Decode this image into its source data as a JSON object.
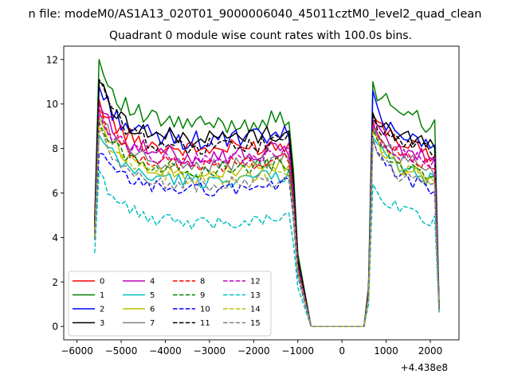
{
  "chart_data": {
    "type": "line",
    "suptitle": "n file: modeM0/AS1A13_020T01_9000006040_45011cztM0_level2_quad_clean",
    "title": "Quadrant 0 module wise count rates with 100.0s bins.",
    "xlabel": "",
    "ylabel": "",
    "x_offset_label": "+4.438e8",
    "xlim": [
      -6300,
      2650
    ],
    "ylim": [
      -0.6,
      12.6
    ],
    "xticks": [
      -6000,
      -5000,
      -4000,
      -3000,
      -2000,
      -1000,
      0,
      1000,
      2000
    ],
    "xtick_labels": [
      "−6000",
      "−5000",
      "−4000",
      "−3000",
      "−2000",
      "−1000",
      "0",
      "1000",
      "2000"
    ],
    "yticks": [
      0,
      2,
      4,
      6,
      8,
      10,
      12
    ],
    "ytick_labels": [
      "0",
      "2",
      "4",
      "6",
      "8",
      "10",
      "12"
    ],
    "grid": false,
    "legend": {
      "placement": "lower-left",
      "columns": 4
    },
    "colors": {
      "red": "#ff0000",
      "green": "#008000",
      "blue": "#0000ff",
      "black": "#000000",
      "magenta": "#bf00bf",
      "cyan": "#00bfbf",
      "olive": "#bfbf00",
      "gray": "#808080"
    },
    "segments": {
      "first": {
        "x_start": -5600,
        "x_step": 100,
        "count": 47
      },
      "gap": {
        "x": [
          -700,
          -600,
          -500,
          -400,
          -300,
          -200,
          -100,
          0,
          100,
          200,
          300,
          400,
          500
        ]
      },
      "second": {
        "x_start": 600,
        "x_step": 100,
        "count": 17
      }
    },
    "series": [
      {
        "name": "0",
        "color": "#ff0000",
        "dash": "solid",
        "level": 8.3,
        "peak": 10.2,
        "amp": 0.4,
        "edge": 4.3,
        "level2": 8.5,
        "peak2": 9.5,
        "end2": 0.8
      },
      {
        "name": "1",
        "color": "#008000",
        "dash": "solid",
        "level": 9.4,
        "peak": 12.0,
        "amp": 0.45,
        "edge": 4.8,
        "level2": 9.8,
        "peak2": 11.0,
        "end2": 0.9
      },
      {
        "name": "2",
        "color": "#0000ff",
        "dash": "solid",
        "level": 8.7,
        "peak": 10.8,
        "amp": 0.45,
        "edge": 4.5,
        "level2": 8.8,
        "peak2": 10.6,
        "end2": 0.8
      },
      {
        "name": "3",
        "color": "#000000",
        "dash": "solid",
        "level": 8.8,
        "peak": 11.0,
        "amp": 0.4,
        "edge": 4.6,
        "level2": 8.8,
        "peak2": 9.6,
        "end2": 0.8
      },
      {
        "name": "4",
        "color": "#bf00bf",
        "dash": "solid",
        "level": 8.0,
        "peak": 10.0,
        "amp": 0.4,
        "edge": 4.2,
        "level2": 8.2,
        "peak2": 9.3,
        "end2": 0.8
      },
      {
        "name": "5",
        "color": "#00bfbf",
        "dash": "solid",
        "level": 6.9,
        "peak": 8.6,
        "amp": 0.35,
        "edge": 4.0,
        "level2": 7.3,
        "peak2": 8.5,
        "end2": 0.7
      },
      {
        "name": "6",
        "color": "#bfbf00",
        "dash": "solid",
        "level": 7.3,
        "peak": 9.4,
        "amp": 0.35,
        "edge": 4.1,
        "level2": 7.4,
        "peak2": 8.8,
        "end2": 0.7
      },
      {
        "name": "7",
        "color": "#808080",
        "dash": "solid",
        "level": 7.6,
        "peak": 9.6,
        "amp": 0.35,
        "edge": 4.2,
        "level2": 7.8,
        "peak2": 9.0,
        "end2": 0.8
      },
      {
        "name": "8",
        "color": "#ff0000",
        "dash": "dashed",
        "level": 7.6,
        "peak": 9.8,
        "amp": 0.35,
        "edge": 4.2,
        "level2": 7.9,
        "peak2": 9.2,
        "end2": 0.8
      },
      {
        "name": "9",
        "color": "#008000",
        "dash": "dashed",
        "level": 7.4,
        "peak": 9.2,
        "amp": 0.35,
        "edge": 4.1,
        "level2": 7.6,
        "peak2": 8.9,
        "end2": 0.7
      },
      {
        "name": "10",
        "color": "#0000ff",
        "dash": "dashed",
        "level": 6.5,
        "peak": 7.8,
        "amp": 0.3,
        "edge": 3.9,
        "level2": 6.9,
        "peak2": 8.4,
        "end2": 0.7
      },
      {
        "name": "11",
        "color": "#000000",
        "dash": "dashed",
        "level": 8.4,
        "peak": 11.1,
        "amp": 0.4,
        "edge": 4.5,
        "level2": 8.5,
        "peak2": 9.6,
        "end2": 0.8
      },
      {
        "name": "12",
        "color": "#bf00bf",
        "dash": "dashed",
        "level": 7.8,
        "peak": 9.7,
        "amp": 0.35,
        "edge": 4.2,
        "level2": 8.0,
        "peak2": 9.1,
        "end2": 0.8
      },
      {
        "name": "13",
        "color": "#00bfbf",
        "dash": "dashed",
        "level": 5.0,
        "peak": 7.0,
        "amp": 0.3,
        "edge": 3.3,
        "level2": 5.5,
        "peak2": 6.4,
        "end2": 0.6
      },
      {
        "name": "14",
        "color": "#bfbf00",
        "dash": "dashed",
        "level": 7.0,
        "peak": 9.0,
        "amp": 0.35,
        "edge": 4.0,
        "level2": 7.3,
        "peak2": 8.7,
        "end2": 0.7
      },
      {
        "name": "15",
        "color": "#808080",
        "dash": "dashed",
        "level": 6.7,
        "peak": 8.8,
        "amp": 0.35,
        "edge": 3.9,
        "level2": 7.0,
        "peak2": 8.5,
        "end2": 0.7
      }
    ]
  }
}
